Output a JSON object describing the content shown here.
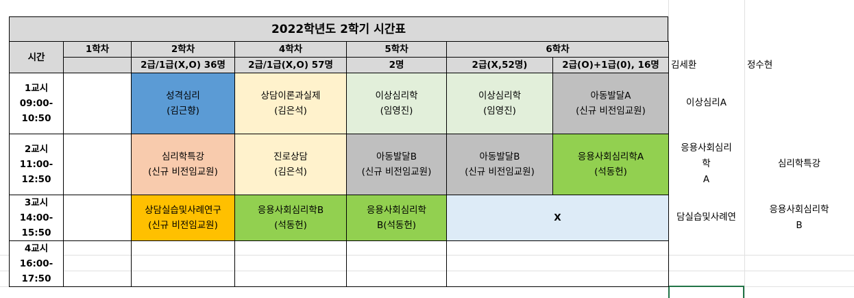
{
  "title": "2022학년도 2학기 시간표",
  "header": {
    "time": "시간",
    "semesters": [
      "1학차",
      "2학차",
      "4학차",
      "5학차",
      "6학차"
    ],
    "groups": [
      "2급/1급(X,O) 36명",
      "2급/1급(X,O) 57명",
      "2명",
      "2급(X,52명)",
      "2급(O)+1급(0), 16명"
    ]
  },
  "side_names": [
    "김세환",
    "정수현"
  ],
  "periods": [
    {
      "lines": [
        "1교시",
        "09:00-",
        "10:50"
      ]
    },
    {
      "lines": [
        "2교시",
        "11:00-",
        "12:50"
      ]
    },
    {
      "lines": [
        "3교시",
        "14:00-",
        "15:50"
      ]
    },
    {
      "lines": [
        "4교시",
        "16:00-",
        "17:50"
      ]
    }
  ],
  "rows": [
    [
      {
        "lines": [
          "성격심리",
          "(김근향)"
        ],
        "color": "#5b9bd5"
      },
      {
        "lines": [
          "상담이론과실제",
          "(김은석)"
        ],
        "color": "#fff2cc"
      },
      {
        "lines": [
          "이상심리학",
          "(임영진)"
        ],
        "color": "#e2efda"
      },
      {
        "lines": [
          "이상심리학",
          "(임영진)"
        ],
        "color": "#e2efda"
      },
      {
        "lines": [
          "아동발달A",
          "(신규 비전임교원)"
        ],
        "color": "#bfbfbf"
      }
    ],
    [
      {
        "lines": [
          "심리학특강",
          "(신규 비전임교원)"
        ],
        "color": "#f8cbad"
      },
      {
        "lines": [
          "진로상담",
          "(김은석)"
        ],
        "color": "#fff2cc"
      },
      {
        "lines": [
          "아동발달B",
          "(신규 비전임교원)"
        ],
        "color": "#bfbfbf"
      },
      {
        "lines": [
          "아동발달B",
          "(신규 비전임교원)"
        ],
        "color": "#bfbfbf"
      },
      {
        "lines": [
          "응용사회심리학A",
          "(석동헌)"
        ],
        "color": "#92d050"
      }
    ],
    [
      {
        "lines": [
          "상담실습및사례연구",
          "(신규 비전임교원)"
        ],
        "color": "#ffc000"
      },
      {
        "lines": [
          "응용사회심리학B",
          "(석동헌)"
        ],
        "color": "#92d050"
      },
      {
        "lines": [
          "응용사회심리학",
          "B(석동헌)"
        ],
        "color": "#92d050"
      },
      {
        "lines": [
          "X"
        ],
        "color": "#ddebf7",
        "colspan": 2
      }
    ]
  ],
  "side_notes": [
    [
      {
        "lines": [
          "이상심리A"
        ]
      }
    ],
    [
      {
        "lines": [
          "응용사회심리",
          "학",
          "A"
        ]
      },
      {
        "lines": [
          "심리학특강"
        ]
      }
    ],
    [
      {
        "lines": [
          "담실습및사례연"
        ]
      },
      {
        "lines": [
          "응용사회심리학",
          "B"
        ]
      }
    ]
  ]
}
